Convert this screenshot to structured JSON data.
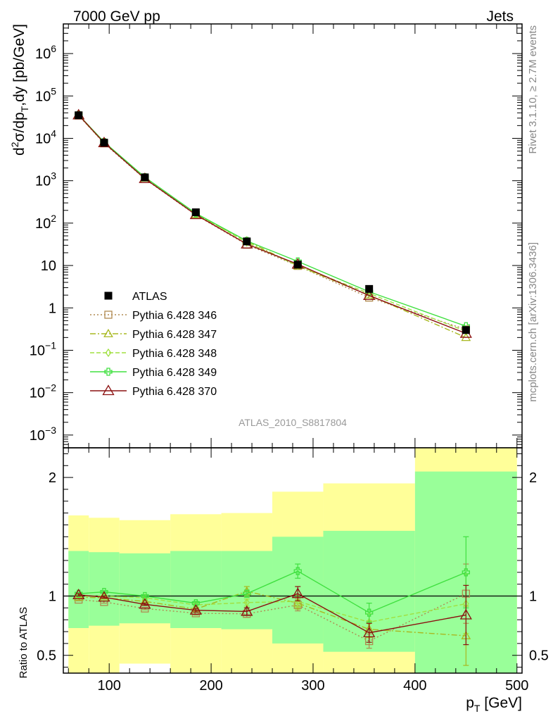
{
  "header": {
    "left": "7000 GeV pp",
    "right": "Jets"
  },
  "side_text": {
    "rivet": "Rivet 3.1.10, ≥ 2.7M events",
    "mcplots": "mcplots.cern.ch [arXiv:1306.3436]"
  },
  "analysis_label": "ATLAS_2010_S8817804",
  "chart_data": [
    {
      "type": "scatter",
      "panel": "main",
      "ylabel": "d²σ/dp_T,dy [pb/GeV]",
      "ylabel_parts": {
        "d": "d",
        "sup": "2",
        "sigma_dp": "σ/dp",
        "sub": "T",
        "rest": ",dy [pb/GeV]"
      },
      "yscale": "log",
      "ylim": [
        0.0005,
        5000000
      ],
      "xlim": [
        55,
        505
      ],
      "yticks": [
        {
          "v": 0.001,
          "base": "10",
          "exp": "−3"
        },
        {
          "v": 0.01,
          "base": "10",
          "exp": "−2"
        },
        {
          "v": 0.1,
          "base": "10",
          "exp": "−1"
        },
        {
          "v": 1,
          "base": "1",
          "exp": ""
        },
        {
          "v": 10,
          "base": "10",
          "exp": ""
        },
        {
          "v": 100,
          "base": "10",
          "exp": "2"
        },
        {
          "v": 1000,
          "base": "10",
          "exp": "3"
        },
        {
          "v": 10000,
          "base": "10",
          "exp": "4"
        },
        {
          "v": 100000,
          "base": "10",
          "exp": "5"
        },
        {
          "v": 1000000,
          "base": "10",
          "exp": "6"
        }
      ],
      "x": [
        70,
        95,
        135,
        185,
        235,
        285,
        355,
        450
      ],
      "atlas": {
        "name": "ATLAS",
        "values": [
          35000,
          7900,
          1200,
          180,
          37,
          10.5,
          2.8,
          0.3
        ]
      },
      "series": [
        {
          "name": "Pythia 6.428 346",
          "color": "#b08a50",
          "marker": "square",
          "dash": "2,3",
          "values": [
            34500,
            7600,
            1100,
            155,
            31,
            9.8,
            1.75,
            0.31
          ]
        },
        {
          "name": "Pythia 6.428 347",
          "color": "#a8b820",
          "marker": "triangle",
          "dash": "8,3,2,3",
          "values": [
            35000,
            7800,
            1150,
            160,
            38,
            9.8,
            2.0,
            0.2
          ]
        },
        {
          "name": "Pythia 6.428 348",
          "color": "#a0e040",
          "marker": "diamond",
          "dash": "6,3",
          "values": [
            35500,
            8000,
            1200,
            168,
            35,
            9.9,
            2.2,
            0.28
          ]
        },
        {
          "name": "Pythia 6.428 349",
          "color": "#40e040",
          "marker": "cross",
          "dash": "",
          "values": [
            35800,
            8200,
            1210,
            170,
            38,
            12.5,
            2.4,
            0.37
          ]
        },
        {
          "name": "Pythia 6.428 370",
          "color": "#8b1010",
          "marker": "triangle",
          "dash": "",
          "values": [
            35500,
            7850,
            1120,
            158,
            32,
            10.7,
            1.95,
            0.25
          ]
        }
      ]
    },
    {
      "type": "scatter",
      "panel": "ratio",
      "ylabel": "Ratio to ATLAS",
      "xlabel_parts": {
        "p": "p",
        "sub": "T",
        "rest": " [GeV]"
      },
      "ylim": [
        0.35,
        2.25
      ],
      "xlim": [
        55,
        505
      ],
      "xticks": [
        100,
        200,
        300,
        400,
        500
      ],
      "yticks": [
        0.5,
        1,
        2
      ],
      "bins": [
        {
          "x0": 60,
          "x1": 80,
          "band1": [
            0.73,
            1.38
          ],
          "band2": [
            0.35,
            1.68
          ]
        },
        {
          "x0": 80,
          "x1": 110,
          "band1": [
            0.75,
            1.37
          ],
          "band2": [
            0.35,
            1.66
          ]
        },
        {
          "x0": 110,
          "x1": 160,
          "band1": [
            0.77,
            1.36
          ],
          "band2": [
            0.43,
            1.64
          ]
        },
        {
          "x0": 160,
          "x1": 210,
          "band1": [
            0.73,
            1.38
          ],
          "band2": [
            0.35,
            1.69
          ]
        },
        {
          "x0": 210,
          "x1": 260,
          "band1": [
            0.72,
            1.38
          ],
          "band2": [
            0.35,
            1.7
          ]
        },
        {
          "x0": 260,
          "x1": 310,
          "band1": [
            0.6,
            1.5
          ],
          "band2": [
            0.35,
            1.88
          ]
        },
        {
          "x0": 310,
          "x1": 400,
          "band1": [
            0.53,
            1.55
          ],
          "band2": [
            0.35,
            1.95
          ]
        },
        {
          "x0": 400,
          "x1": 500,
          "band1": [
            0.35,
            2.05
          ],
          "band2": [
            0.35,
            2.25
          ]
        }
      ],
      "x": [
        70,
        95,
        135,
        185,
        235,
        285,
        355,
        450
      ],
      "series": [
        {
          "name": "Pythia 6.428 346",
          "values": [
            0.97,
            0.95,
            0.895,
            0.855,
            0.85,
            0.925,
            0.62,
            1.02
          ],
          "errors": [
            0.01,
            0.01,
            0.01,
            0.015,
            0.03,
            0.05,
            0.06,
            0.25
          ]
        },
        {
          "name": "Pythia 6.428 347",
          "values": [
            0.99,
            0.985,
            0.955,
            0.89,
            1.04,
            0.94,
            0.72,
            0.665
          ],
          "errors": [
            0.01,
            0.01,
            0.01,
            0.015,
            0.04,
            0.05,
            0.07,
            0.25
          ]
        },
        {
          "name": "Pythia 6.428 348",
          "values": [
            1.0,
            1.0,
            0.985,
            0.925,
            0.945,
            0.955,
            0.78,
            0.935
          ],
          "errors": [
            0.01,
            0.01,
            0.01,
            0.015,
            0.03,
            0.05,
            0.07,
            0.25
          ]
        },
        {
          "name": "Pythia 6.428 349",
          "values": [
            1.02,
            1.035,
            1.0,
            0.94,
            1.02,
            1.21,
            0.86,
            1.2
          ],
          "errors": [
            0.01,
            0.01,
            0.01,
            0.015,
            0.03,
            0.06,
            0.08,
            0.3
          ]
        },
        {
          "name": "Pythia 6.428 370",
          "values": [
            1.01,
            0.99,
            0.93,
            0.88,
            0.87,
            1.02,
            0.69,
            0.84
          ],
          "errors": [
            0.01,
            0.01,
            0.01,
            0.015,
            0.03,
            0.06,
            0.08,
            0.25
          ]
        }
      ]
    }
  ]
}
